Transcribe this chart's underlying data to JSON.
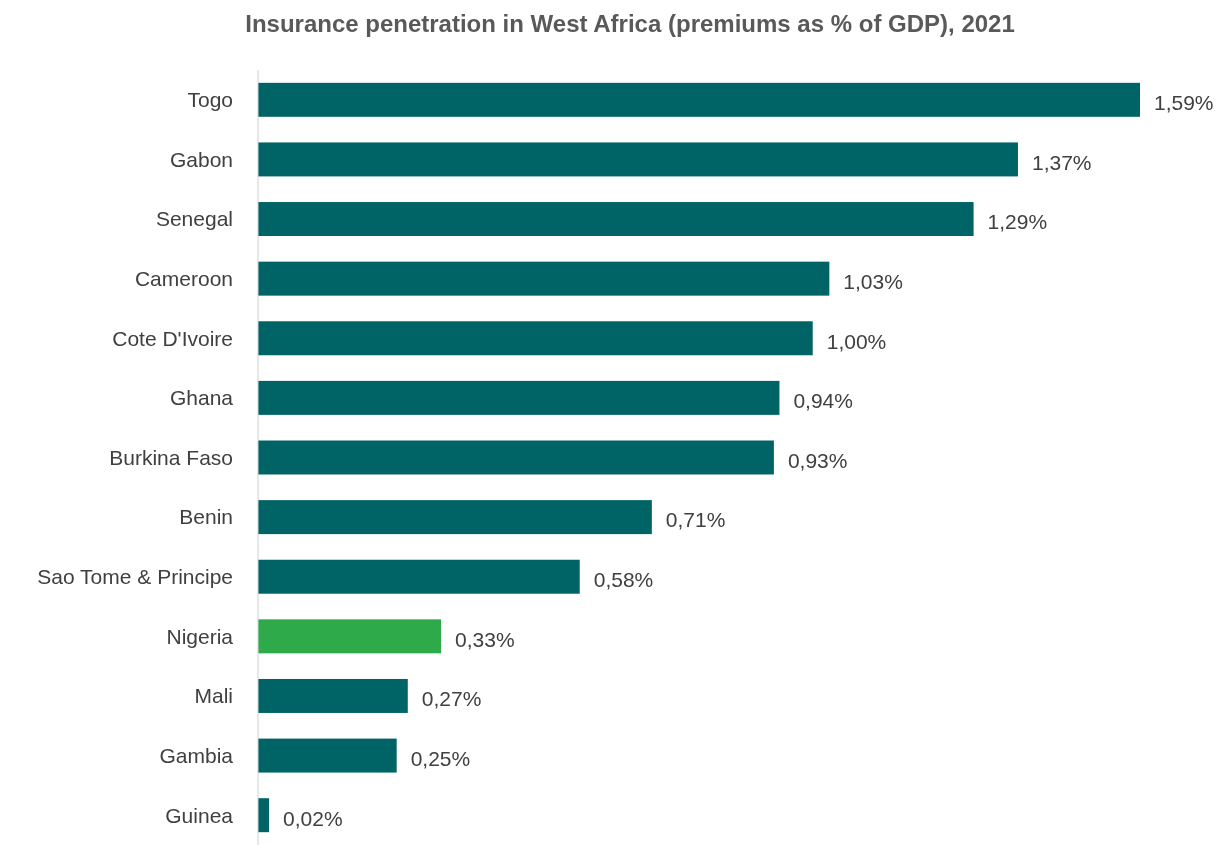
{
  "chart_data": {
    "type": "bar",
    "orientation": "horizontal",
    "title": "Insurance penetration in West Africa (premiums as % of GDP), 2021",
    "categories": [
      "Togo",
      "Gabon",
      "Senegal",
      "Cameroon",
      "Cote D'Ivoire",
      "Ghana",
      "Burkina Faso",
      "Benin",
      "Sao Tome & Principe",
      "Nigeria",
      "Mali",
      "Gambia",
      "Guinea"
    ],
    "values": [
      1.59,
      1.37,
      1.29,
      1.03,
      1.0,
      0.94,
      0.93,
      0.71,
      0.58,
      0.33,
      0.27,
      0.25,
      0.02
    ],
    "value_labels": [
      "1,59%",
      "1,37%",
      "1,29%",
      "1,03%",
      "1,00%",
      "0,94%",
      "0,93%",
      "0,71%",
      "0,58%",
      "0,33%",
      "0,27%",
      "0,25%",
      "0,02%"
    ],
    "colors": [
      "#006466",
      "#006466",
      "#006466",
      "#006466",
      "#006466",
      "#006466",
      "#006466",
      "#006466",
      "#006466",
      "#2eaa4a",
      "#006466",
      "#006466",
      "#006466"
    ],
    "xlim": [
      0,
      1.59
    ],
    "tick_labels": "y"
  }
}
